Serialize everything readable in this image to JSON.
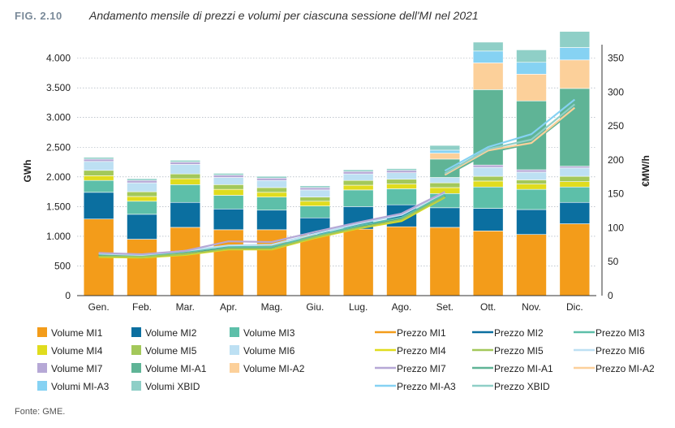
{
  "figure": {
    "label": "FIG. 2.10",
    "title": "Andamento mensile di prezzi e volumi per ciascuna sessione dell'MI nel 2021",
    "source": "Fonte: GME."
  },
  "chart_data": {
    "type": "bar",
    "stacked": true,
    "categories": [
      "Gen.",
      "Feb.",
      "Mar.",
      "Apr.",
      "Mag.",
      "Giu.",
      "Lug.",
      "Ago.",
      "Set.",
      "Ott.",
      "Nov.",
      "Dic."
    ],
    "ylabel": "GWh",
    "y2label": "€MW/h",
    "ylim": [
      0,
      4200
    ],
    "yticks": [
      0,
      500,
      1000,
      1500,
      2000,
      2500,
      3000,
      3500,
      4000
    ],
    "ytick_labels": [
      "0",
      "500",
      "1.000",
      "1.500",
      "2.000",
      "2.500",
      "3.000",
      "3.500",
      "4.000"
    ],
    "y2lim": [
      0,
      367.5
    ],
    "y2ticks": [
      0,
      50,
      100,
      150,
      200,
      250,
      300,
      350
    ],
    "grid": true,
    "legend_position": "bottom",
    "bar_series": [
      {
        "name": "Volume MI1",
        "color": "#f39c1a",
        "values": [
          1290,
          950,
          1150,
          1110,
          1110,
          1030,
          1120,
          1160,
          1150,
          1090,
          1030,
          1210
        ]
      },
      {
        "name": "Volume MI2",
        "color": "#0b6fa0",
        "values": [
          450,
          420,
          420,
          350,
          330,
          280,
          380,
          370,
          330,
          380,
          420,
          360
        ]
      },
      {
        "name": "Volume MI3",
        "color": "#5dbfa9",
        "values": [
          200,
          220,
          300,
          230,
          220,
          200,
          280,
          270,
          240,
          360,
          340,
          260
        ]
      },
      {
        "name": "Volume MI4",
        "color": "#e0dc1e",
        "values": [
          80,
          80,
          100,
          100,
          80,
          80,
          80,
          80,
          100,
          100,
          90,
          90
        ]
      },
      {
        "name": "Volume MI5",
        "color": "#a3c85a",
        "values": [
          90,
          80,
          80,
          80,
          80,
          70,
          80,
          80,
          80,
          80,
          70,
          90
        ]
      },
      {
        "name": "Volume MI6",
        "color": "#bde0f3",
        "values": [
          150,
          150,
          160,
          120,
          120,
          120,
          110,
          110,
          90,
          150,
          130,
          140
        ]
      },
      {
        "name": "Volume MI7",
        "color": "#b6a8d6",
        "values": [
          40,
          40,
          40,
          40,
          40,
          40,
          40,
          40,
          0,
          40,
          40,
          30
        ]
      },
      {
        "name": "Volume MI-A1",
        "color": "#5fb496",
        "values": [
          0,
          0,
          0,
          0,
          0,
          0,
          0,
          0,
          310,
          1270,
          1160,
          1310
        ]
      },
      {
        "name": "Volume MI-A2",
        "color": "#fcd09a",
        "values": [
          0,
          0,
          0,
          0,
          0,
          0,
          0,
          0,
          100,
          450,
          450,
          480
        ]
      },
      {
        "name": "Volumi MI-A3",
        "color": "#86d2f3",
        "values": [
          0,
          0,
          0,
          0,
          0,
          0,
          0,
          0,
          50,
          200,
          200,
          210
        ]
      },
      {
        "name": "Volumi XBID",
        "color": "#8fcfc7",
        "values": [
          30,
          30,
          30,
          30,
          30,
          30,
          30,
          30,
          80,
          150,
          210,
          270
        ]
      }
    ],
    "line_series": [
      {
        "name": "Prezzo MI1",
        "color": "#f39c1a",
        "values": [
          59,
          58,
          62,
          71,
          70,
          86,
          100,
          111,
          146,
          null,
          null,
          null
        ]
      },
      {
        "name": "Prezzo MI2",
        "color": "#0b6fa0",
        "values": [
          60,
          56,
          61,
          70,
          71,
          87,
          101,
          113,
          148,
          null,
          null,
          null
        ]
      },
      {
        "name": "Prezzo MI3",
        "color": "#5dbfa9",
        "values": [
          61,
          59,
          64,
          72,
          72,
          88,
          103,
          115,
          149,
          null,
          null,
          null
        ]
      },
      {
        "name": "Prezzo MI4",
        "color": "#e0dc1e",
        "values": [
          57,
          56,
          60,
          68,
          68,
          85,
          99,
          110,
          145,
          null,
          null,
          null
        ]
      },
      {
        "name": "Prezzo MI5",
        "color": "#a3c85a",
        "values": [
          58,
          57,
          61,
          69,
          69,
          86,
          100,
          112,
          146,
          null,
          null,
          null
        ]
      },
      {
        "name": "Prezzo MI6",
        "color": "#bde0f3",
        "values": [
          62,
          60,
          66,
          74,
          75,
          91,
          106,
          119,
          152,
          null,
          null,
          null
        ]
      },
      {
        "name": "Prezzo MI7",
        "color": "#b6a8d6",
        "values": [
          63,
          61,
          66,
          80,
          79,
          94,
          108,
          121,
          153,
          null,
          null,
          null
        ]
      },
      {
        "name": "Prezzo MI-A1",
        "color": "#5fb496",
        "values": [
          null,
          null,
          null,
          null,
          null,
          null,
          null,
          null,
          176,
          211,
          224,
          274
        ]
      },
      {
        "name": "Prezzo MI-A2",
        "color": "#fcd09a",
        "values": [
          null,
          null,
          null,
          null,
          null,
          null,
          null,
          null,
          178,
          214,
          225,
          277
        ]
      },
      {
        "name": "Prezzo MI-A3",
        "color": "#86d2f3",
        "values": [
          null,
          null,
          null,
          null,
          null,
          null,
          null,
          null,
          184,
          219,
          238,
          289
        ]
      },
      {
        "name": "Prezzo XBID",
        "color": "#8fcfc7",
        "values": [
          null,
          null,
          null,
          null,
          null,
          null,
          null,
          null,
          180,
          216,
          230,
          282
        ]
      }
    ]
  }
}
